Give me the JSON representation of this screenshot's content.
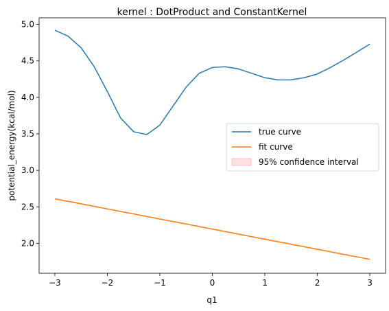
{
  "chart_data": {
    "type": "line",
    "title": "kernel : DotProduct and ConstantKernel",
    "xlabel": "q1",
    "ylabel": "potential_energy(kcal/mol)",
    "xlim": [
      -3.3,
      3.3
    ],
    "ylim": [
      1.59,
      5.09
    ],
    "xticks": [
      -3,
      -2,
      -1,
      0,
      1,
      2,
      3
    ],
    "xtick_labels": [
      "−3",
      "−2",
      "−1",
      "0",
      "1",
      "2",
      "3"
    ],
    "yticks": [
      2.0,
      2.5,
      3.0,
      3.5,
      4.0,
      4.5,
      5.0
    ],
    "ytick_labels": [
      "2.0",
      "2.5",
      "3.0",
      "3.5",
      "4.0",
      "4.5",
      "5.0"
    ],
    "grid": false,
    "legend_position": "center-right",
    "series": [
      {
        "name": "true curve",
        "color": "#1f77b4",
        "x": [
          -3.0,
          -2.75,
          -2.5,
          -2.25,
          -2.0,
          -1.75,
          -1.5,
          -1.25,
          -1.0,
          -0.75,
          -0.5,
          -0.25,
          0.0,
          0.25,
          0.5,
          0.75,
          1.0,
          1.25,
          1.5,
          1.75,
          2.0,
          2.25,
          2.5,
          2.75,
          3.0
        ],
        "y": [
          4.92,
          4.84,
          4.68,
          4.42,
          4.08,
          3.72,
          3.53,
          3.49,
          3.62,
          3.88,
          4.14,
          4.33,
          4.41,
          4.42,
          4.39,
          4.33,
          4.27,
          4.24,
          4.24,
          4.27,
          4.32,
          4.41,
          4.51,
          4.62,
          4.73
        ]
      },
      {
        "name": "fit curve",
        "color": "#ff7f0e",
        "x": [
          -3.0,
          3.0
        ],
        "y": [
          2.61,
          1.78
        ]
      }
    ],
    "confidence_interval": {
      "name": "95% confidence interval",
      "color": "#ffcccc",
      "half_width": 0.01
    }
  }
}
